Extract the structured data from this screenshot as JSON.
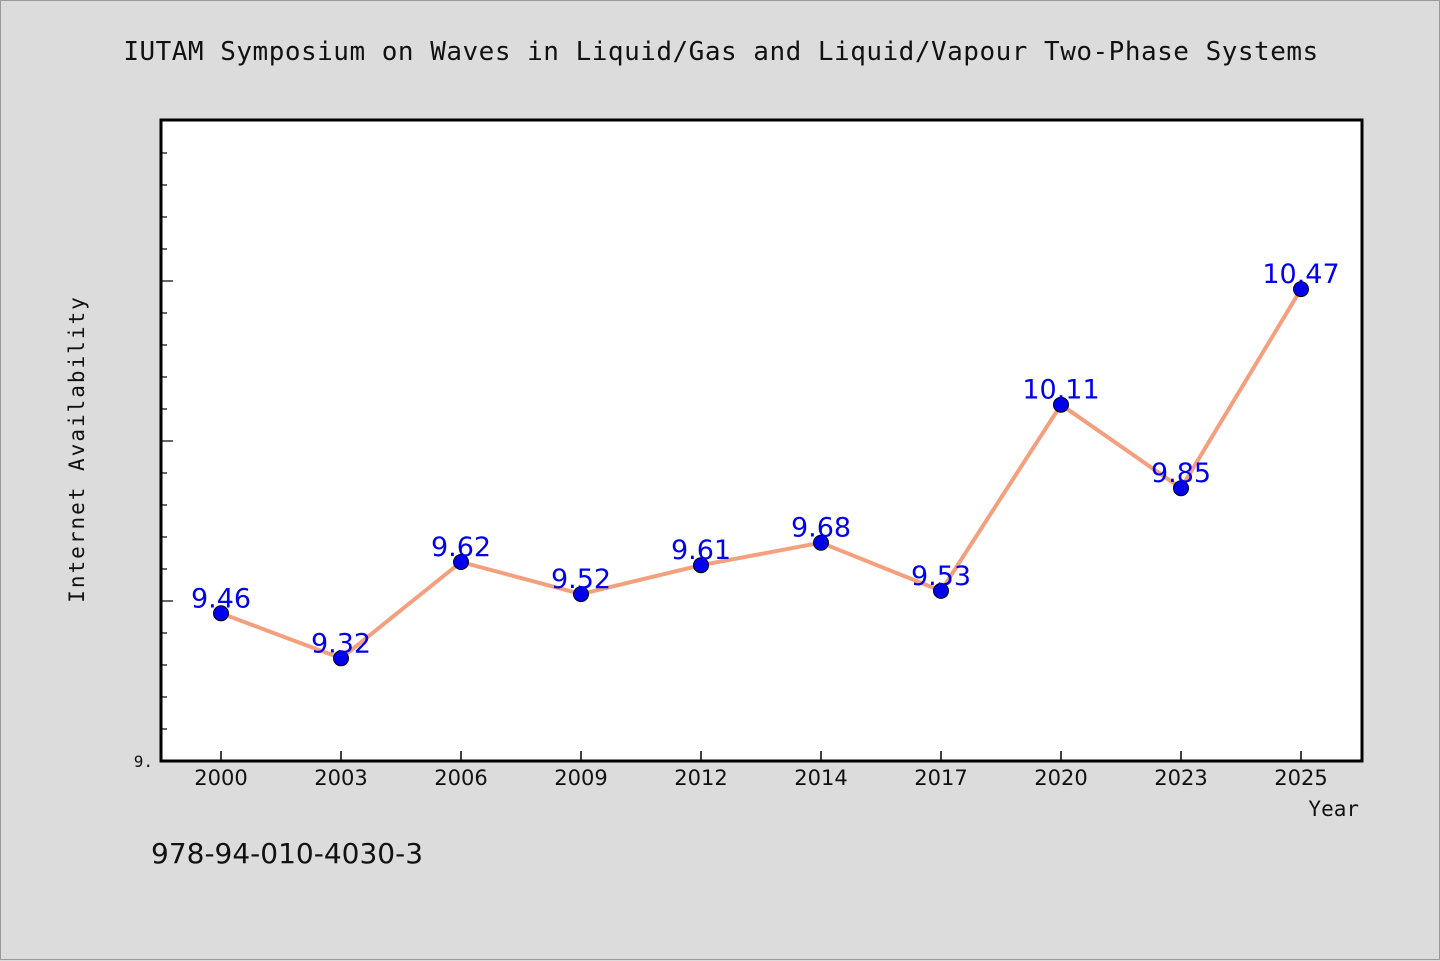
{
  "chart_data": {
    "type": "line",
    "title": "IUTAM Symposium on Waves in Liquid/Gas and Liquid/Vapour Two-Phase Systems",
    "xlabel": "Year",
    "ylabel": "Internet Availability",
    "categories": [
      "2000",
      "2003",
      "2006",
      "2009",
      "2012",
      "2014",
      "2017",
      "2020",
      "2023",
      "2025"
    ],
    "series": [
      {
        "values": [
          9.46,
          9.32,
          9.62,
          9.52,
          9.61,
          9.68,
          9.53,
          10.11,
          9.85,
          10.47
        ]
      }
    ],
    "data_labels": [
      "9.46",
      "9.32",
      "9.62",
      "9.52",
      "9.61",
      "9.68",
      "9.53",
      "10.11",
      "9.85",
      "10.47"
    ],
    "ylim": [
      9.0,
      11.0
    ],
    "y_tick_label": "9.",
    "grid": false,
    "line_color": "#f4a07e",
    "marker_color": "#0000ee",
    "label_color": "#0000ee"
  },
  "footer": {
    "isbn": "978-94-010-4030-3"
  }
}
